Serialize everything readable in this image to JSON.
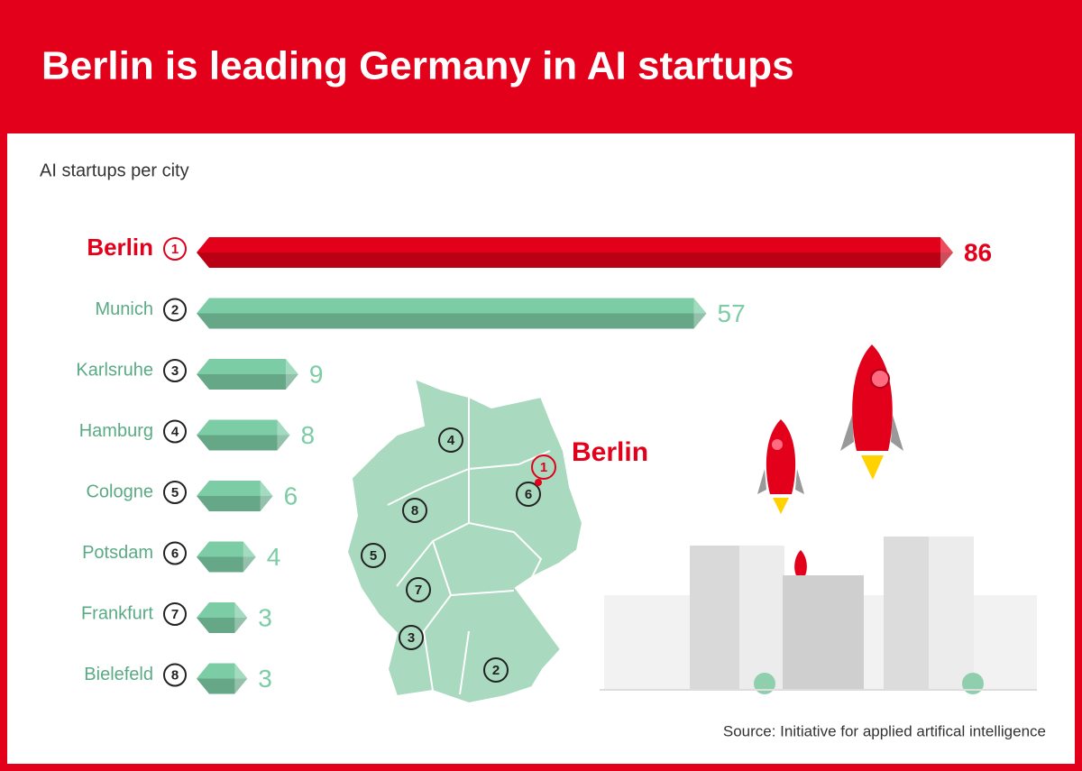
{
  "chart_data": {
    "type": "bar",
    "orientation": "horizontal",
    "title": "Berlin is leading Germany in AI startups",
    "subtitle": "AI startups per city",
    "categories": [
      "Berlin",
      "Munich",
      "Karlsruhe",
      "Hamburg",
      "Cologne",
      "Potsdam",
      "Frankfurt",
      "Bielefeld"
    ],
    "ranks": [
      1,
      2,
      3,
      4,
      5,
      6,
      7,
      8
    ],
    "values": [
      86,
      57,
      9,
      8,
      6,
      4,
      3,
      3
    ],
    "colors": [
      "#e2001a",
      "#7ccca5",
      "#7ccca5",
      "#7ccca5",
      "#7ccca5",
      "#7ccca5",
      "#7ccca5",
      "#7ccca5"
    ],
    "source": "Source: Initiative for applied artifical intelligence"
  }
}
